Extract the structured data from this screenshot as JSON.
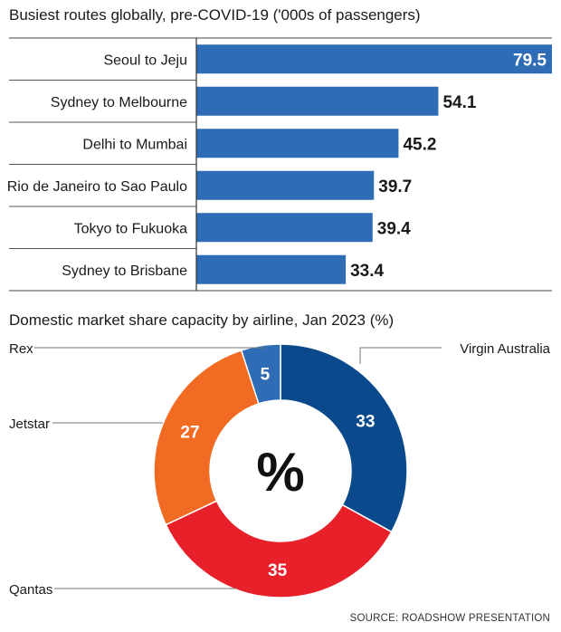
{
  "source": "SOURCE: ROADSHOW PRESENTATION",
  "chart_data": [
    {
      "type": "bar",
      "orientation": "horizontal",
      "title": "Busiest routes globally, pre-COVID-19 ('000s of passengers)",
      "categories": [
        "Seoul to Jeju",
        "Sydney to Melbourne",
        "Delhi to Mumbai",
        "Rio de Janeiro to Sao Paulo",
        "Tokyo to Fukuoka",
        "Sydney to Brisbane"
      ],
      "values": [
        79.5,
        54.1,
        45.2,
        39.7,
        39.4,
        33.4
      ],
      "value_labels": [
        "79.5",
        "54.1",
        "45.2",
        "39.7",
        "39.4",
        "33.4"
      ],
      "xlim": [
        0,
        79.5
      ],
      "grid": false,
      "colors": {
        "bar": "#2e6cb5"
      }
    },
    {
      "type": "pie",
      "variant": "donut",
      "title": "Domestic market share capacity by airline, Jan 2023 (%)",
      "center_label": "%",
      "slices": [
        {
          "name": "Virgin Australia",
          "value": 33,
          "label": "33",
          "color": "#0a4a8c"
        },
        {
          "name": "Qantas",
          "value": 35,
          "label": "35",
          "color": "#e8202a"
        },
        {
          "name": "Jetstar",
          "value": 27,
          "label": "27",
          "color": "#f26b22"
        },
        {
          "name": "Rex",
          "value": 5,
          "label": "5",
          "color": "#2e6cb5"
        }
      ]
    }
  ]
}
